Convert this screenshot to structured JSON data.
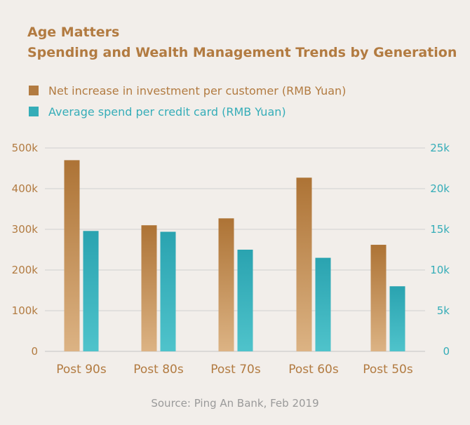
{
  "chart_data": {
    "type": "bar",
    "title_line1": "Age Matters",
    "title_line2": "Spending and Wealth Management Trends by Generation",
    "categories": [
      "Post 90s",
      "Post 80s",
      "Post 70s",
      "Post 60s",
      "Post 50s"
    ],
    "series": [
      {
        "name": "Net increase in investment per customer (RMB Yuan)",
        "axis": "left",
        "color": "#b27b41",
        "values": [
          470000,
          310000,
          327000,
          427000,
          262000
        ]
      },
      {
        "name": "Average spend per credit card (RMB Yuan)",
        "axis": "right",
        "color": "#35adb8",
        "values": [
          14800,
          14700,
          12500,
          11500,
          8000
        ]
      }
    ],
    "left_axis": {
      "ticks": [
        "0",
        "100k",
        "200k",
        "300k",
        "400k",
        "500k"
      ],
      "ylim": [
        0,
        500000
      ]
    },
    "right_axis": {
      "ticks": [
        "0",
        "5k",
        "10k",
        "15k",
        "20k",
        "25k"
      ],
      "ylim": [
        0,
        25000
      ]
    },
    "source": "Source: Ping An Bank, Feb 2019"
  }
}
